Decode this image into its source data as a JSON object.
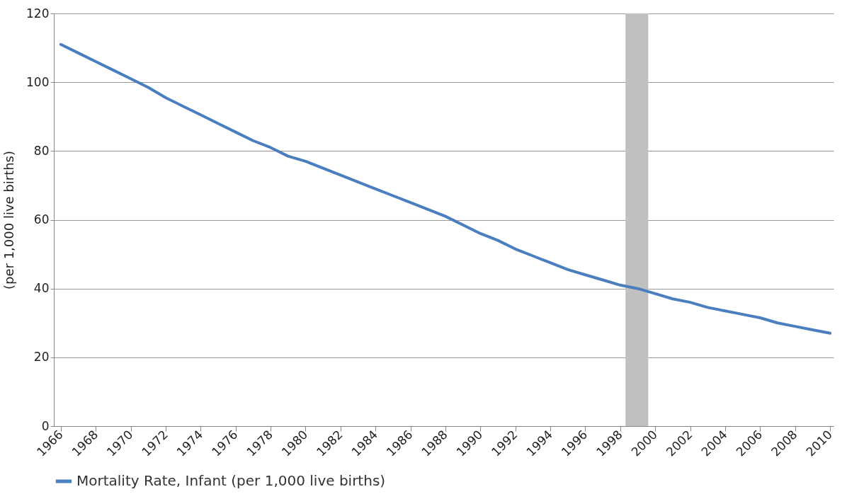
{
  "chart_data": {
    "type": "line",
    "ylabel": "(per 1,000 live births)",
    "x": [
      1966,
      1967,
      1968,
      1969,
      1970,
      1971,
      1972,
      1973,
      1974,
      1975,
      1976,
      1977,
      1978,
      1979,
      1980,
      1981,
      1982,
      1983,
      1984,
      1985,
      1986,
      1987,
      1988,
      1989,
      1990,
      1991,
      1992,
      1993,
      1994,
      1995,
      1996,
      1997,
      1998,
      1999,
      2000,
      2001,
      2002,
      2003,
      2004,
      2005,
      2006,
      2007,
      2008,
      2009,
      2010
    ],
    "series": [
      {
        "name": "Mortality Rate, Infant (per 1,000 live births)",
        "color": "#4a7ebf",
        "values": [
          111,
          108.5,
          106,
          103.5,
          101,
          98.5,
          95.5,
          93,
          90.5,
          88,
          85.5,
          83,
          81,
          78.5,
          77,
          75,
          73,
          71,
          69,
          67,
          65,
          63,
          61,
          58.5,
          56,
          54,
          51.5,
          49.5,
          47.5,
          45.5,
          44,
          42.5,
          41,
          40,
          38.5,
          37,
          36,
          34.5,
          33.5,
          32.5,
          31.5,
          30,
          29,
          28,
          27
        ]
      }
    ],
    "xlim": [
      1965.6,
      2010.2
    ],
    "xticks": [
      1966,
      1968,
      1970,
      1972,
      1974,
      1976,
      1978,
      1980,
      1982,
      1984,
      1986,
      1988,
      1990,
      1992,
      1994,
      1996,
      1998,
      2000,
      2002,
      2004,
      2006,
      2008,
      2010
    ],
    "ylim": [
      0,
      120
    ],
    "yticks": [
      0,
      20,
      40,
      60,
      80,
      100,
      120
    ],
    "bands": [
      {
        "axis": "x",
        "from": 1998.3,
        "to": 1999.6,
        "color": "#c0c0c0"
      }
    ],
    "grid": "y",
    "legend": "bottom"
  }
}
